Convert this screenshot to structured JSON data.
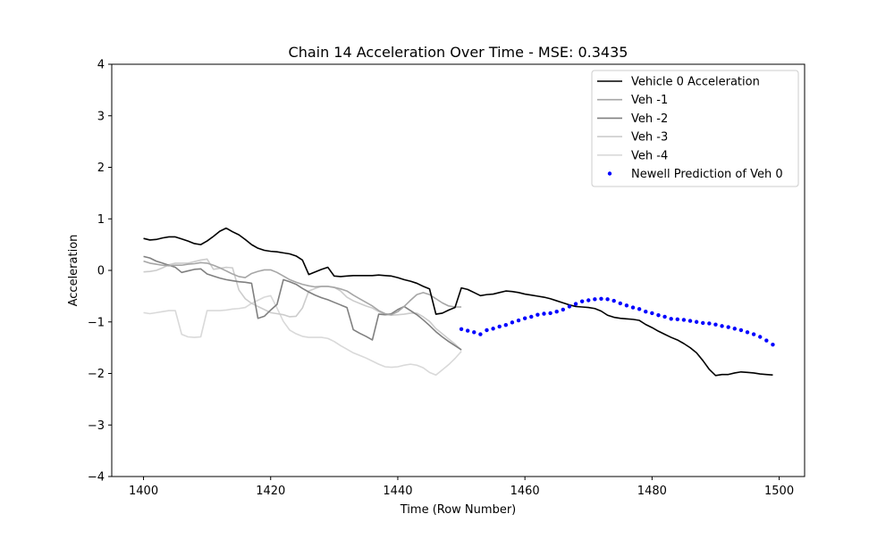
{
  "chart_data": {
    "type": "line",
    "title": "Chain 14 Acceleration Over Time - MSE: 0.3435",
    "xlabel": "Time (Row Number)",
    "ylabel": "Acceleration",
    "xlim": [
      1395,
      1504
    ],
    "ylim": [
      -4,
      4
    ],
    "x_ticks": [
      1400,
      1420,
      1440,
      1460,
      1480,
      1500
    ],
    "y_ticks": [
      -4,
      -3,
      -2,
      -1,
      0,
      1,
      2,
      3,
      4
    ],
    "x_tick_labels": [
      "1400",
      "1420",
      "1440",
      "1460",
      "1480",
      "1500"
    ],
    "y_tick_labels": [
      "−4",
      "−3",
      "−2",
      "−1",
      "0",
      "1",
      "2",
      "3",
      "4"
    ],
    "grid": false,
    "legend_position": "top-right",
    "series": [
      {
        "name": "Vehicle 0 Acceleration",
        "style": "solid",
        "color": "#000000",
        "x": [
          1400,
          1401,
          1402,
          1403,
          1404,
          1405,
          1406,
          1407,
          1408,
          1409,
          1410,
          1411,
          1412,
          1413,
          1414,
          1415,
          1416,
          1417,
          1418,
          1419,
          1420,
          1421,
          1422,
          1423,
          1424,
          1425,
          1426,
          1427,
          1428,
          1429,
          1430,
          1431,
          1432,
          1433,
          1434,
          1435,
          1436,
          1437,
          1438,
          1439,
          1440,
          1441,
          1442,
          1443,
          1444,
          1445,
          1446,
          1447,
          1448,
          1449,
          1450,
          1451,
          1452,
          1453,
          1454,
          1455,
          1456,
          1457,
          1458,
          1459,
          1460,
          1461,
          1462,
          1463,
          1464,
          1465,
          1466,
          1467,
          1468,
          1469,
          1470,
          1471,
          1472,
          1473,
          1474,
          1475,
          1476,
          1477,
          1478,
          1479,
          1480,
          1481,
          1482,
          1483,
          1484,
          1485,
          1486,
          1487,
          1488,
          1489,
          1490,
          1491,
          1492,
          1493,
          1494,
          1495,
          1496,
          1497,
          1498,
          1499
        ],
        "y": [
          0.62,
          0.59,
          0.6,
          0.63,
          0.65,
          0.65,
          0.61,
          0.57,
          0.52,
          0.5,
          0.57,
          0.66,
          0.76,
          0.82,
          0.75,
          0.69,
          0.6,
          0.5,
          0.43,
          0.39,
          0.37,
          0.36,
          0.34,
          0.32,
          0.28,
          0.2,
          -0.08,
          -0.03,
          0.02,
          0.06,
          -0.11,
          -0.12,
          -0.11,
          -0.1,
          -0.1,
          -0.1,
          -0.1,
          -0.09,
          -0.1,
          -0.11,
          -0.14,
          -0.18,
          -0.21,
          -0.25,
          -0.31,
          -0.36,
          -0.85,
          -0.83,
          -0.77,
          -0.72,
          -0.34,
          -0.37,
          -0.43,
          -0.49,
          -0.47,
          -0.46,
          -0.43,
          -0.4,
          -0.41,
          -0.43,
          -0.46,
          -0.48,
          -0.5,
          -0.52,
          -0.55,
          -0.59,
          -0.63,
          -0.67,
          -0.7,
          -0.71,
          -0.72,
          -0.74,
          -0.79,
          -0.87,
          -0.91,
          -0.93,
          -0.94,
          -0.95,
          -0.97,
          -1.05,
          -1.11,
          -1.18,
          -1.24,
          -1.3,
          -1.35,
          -1.42,
          -1.5,
          -1.6,
          -1.75,
          -1.92,
          -2.04,
          -2.02,
          -2.02,
          -1.99,
          -1.97,
          -1.98,
          -1.99,
          -2.01,
          -2.02,
          -2.03
        ]
      },
      {
        "name": "Veh -1",
        "style": "solid",
        "color": "#a6a6a6",
        "x": [
          1400,
          1401,
          1402,
          1403,
          1404,
          1405,
          1406,
          1407,
          1408,
          1409,
          1410,
          1411,
          1412,
          1413,
          1414,
          1415,
          1416,
          1417,
          1418,
          1419,
          1420,
          1421,
          1422,
          1423,
          1424,
          1425,
          1426,
          1427,
          1428,
          1429,
          1430,
          1431,
          1432,
          1433,
          1434,
          1435,
          1436,
          1437,
          1438,
          1439,
          1440,
          1441,
          1442,
          1443,
          1444,
          1445,
          1446,
          1447,
          1448,
          1449,
          1450
        ],
        "y": [
          0.18,
          0.14,
          0.12,
          0.1,
          0.09,
          0.1,
          0.1,
          0.12,
          0.13,
          0.15,
          0.14,
          0.1,
          0.05,
          -0.01,
          -0.07,
          -0.12,
          -0.14,
          -0.06,
          -0.02,
          0.01,
          0.01,
          -0.04,
          -0.11,
          -0.18,
          -0.23,
          -0.27,
          -0.3,
          -0.32,
          -0.31,
          -0.31,
          -0.33,
          -0.36,
          -0.4,
          -0.48,
          -0.55,
          -0.62,
          -0.69,
          -0.78,
          -0.84,
          -0.86,
          -0.8,
          -0.7,
          -0.58,
          -0.47,
          -0.43,
          -0.47,
          -0.55,
          -0.63,
          -0.69,
          -0.71,
          -0.71
        ]
      },
      {
        "name": "Veh -2",
        "style": "solid",
        "color": "#808080",
        "x": [
          1400,
          1401,
          1402,
          1403,
          1404,
          1405,
          1406,
          1407,
          1408,
          1409,
          1410,
          1411,
          1412,
          1413,
          1414,
          1415,
          1416,
          1417,
          1418,
          1419,
          1420,
          1421,
          1422,
          1423,
          1424,
          1425,
          1426,
          1427,
          1428,
          1429,
          1430,
          1431,
          1432,
          1433,
          1434,
          1435,
          1436,
          1437,
          1438,
          1439,
          1440,
          1441,
          1442,
          1443,
          1444,
          1445,
          1446,
          1447,
          1448,
          1449,
          1450
        ],
        "y": [
          0.27,
          0.24,
          0.18,
          0.14,
          0.1,
          0.06,
          -0.04,
          -0.01,
          0.02,
          0.03,
          -0.07,
          -0.11,
          -0.15,
          -0.18,
          -0.2,
          -0.22,
          -0.23,
          -0.25,
          -0.93,
          -0.89,
          -0.77,
          -0.66,
          -0.18,
          -0.22,
          -0.27,
          -0.35,
          -0.42,
          -0.48,
          -0.53,
          -0.57,
          -0.62,
          -0.67,
          -0.72,
          -1.15,
          -1.22,
          -1.28,
          -1.35,
          -0.85,
          -0.86,
          -0.84,
          -0.76,
          -0.7,
          -0.78,
          -0.86,
          -0.96,
          -1.07,
          -1.19,
          -1.29,
          -1.38,
          -1.46,
          -1.54
        ]
      },
      {
        "name": "Veh -3",
        "style": "solid",
        "color": "#cccccc",
        "x": [
          1400,
          1401,
          1402,
          1403,
          1404,
          1405,
          1406,
          1407,
          1408,
          1409,
          1410,
          1411,
          1412,
          1413,
          1414,
          1415,
          1416,
          1417,
          1418,
          1419,
          1420,
          1421,
          1422,
          1423,
          1424,
          1425,
          1426,
          1427,
          1428,
          1429,
          1430,
          1431,
          1432,
          1433,
          1434,
          1435,
          1436,
          1437,
          1438,
          1439,
          1440,
          1441,
          1442,
          1443,
          1444,
          1445,
          1446,
          1447,
          1448,
          1449,
          1450
        ],
        "y": [
          -0.03,
          -0.02,
          0.0,
          0.05,
          0.11,
          0.14,
          0.14,
          0.14,
          0.17,
          0.2,
          0.22,
          0.02,
          0.04,
          0.06,
          0.05,
          -0.38,
          -0.55,
          -0.64,
          -0.7,
          -0.76,
          -0.82,
          -0.84,
          -0.86,
          -0.9,
          -0.89,
          -0.73,
          -0.4,
          -0.35,
          -0.31,
          -0.31,
          -0.33,
          -0.4,
          -0.52,
          -0.59,
          -0.64,
          -0.69,
          -0.73,
          -0.8,
          -0.86,
          -0.87,
          -0.86,
          -0.85,
          -0.83,
          -0.83,
          -0.9,
          -0.99,
          -1.13,
          -1.23,
          -1.33,
          -1.43,
          -1.55
        ]
      },
      {
        "name": "Veh -4",
        "style": "solid",
        "color": "#d9d9d9",
        "x": [
          1400,
          1401,
          1402,
          1403,
          1404,
          1405,
          1406,
          1407,
          1408,
          1409,
          1410,
          1411,
          1412,
          1413,
          1414,
          1415,
          1416,
          1417,
          1418,
          1419,
          1420,
          1421,
          1422,
          1423,
          1424,
          1425,
          1426,
          1427,
          1428,
          1429,
          1430,
          1431,
          1432,
          1433,
          1434,
          1435,
          1436,
          1437,
          1438,
          1439,
          1440,
          1441,
          1442,
          1443,
          1444,
          1445,
          1446,
          1447,
          1448,
          1449,
          1450
        ],
        "y": [
          -0.82,
          -0.84,
          -0.82,
          -0.8,
          -0.78,
          -0.78,
          -1.24,
          -1.29,
          -1.3,
          -1.29,
          -0.78,
          -0.78,
          -0.78,
          -0.77,
          -0.75,
          -0.74,
          -0.72,
          -0.64,
          -0.58,
          -0.52,
          -0.49,
          -0.73,
          -0.99,
          -1.16,
          -1.23,
          -1.28,
          -1.3,
          -1.3,
          -1.3,
          -1.32,
          -1.38,
          -1.46,
          -1.53,
          -1.6,
          -1.65,
          -1.7,
          -1.76,
          -1.82,
          -1.87,
          -1.88,
          -1.87,
          -1.84,
          -1.82,
          -1.84,
          -1.89,
          -1.98,
          -2.03,
          -1.93,
          -1.83,
          -1.71,
          -1.57
        ]
      },
      {
        "name": "Newell Prediction of Veh 0",
        "style": "dotted",
        "color": "#0000ff",
        "x": [
          1450,
          1451,
          1452,
          1453,
          1454,
          1455,
          1456,
          1457,
          1458,
          1459,
          1460,
          1461,
          1462,
          1463,
          1464,
          1465,
          1466,
          1467,
          1468,
          1469,
          1470,
          1471,
          1472,
          1473,
          1474,
          1475,
          1476,
          1477,
          1478,
          1479,
          1480,
          1481,
          1482,
          1483,
          1484,
          1485,
          1486,
          1487,
          1488,
          1489,
          1490,
          1491,
          1492,
          1493,
          1494,
          1495,
          1496,
          1497,
          1498,
          1499
        ],
        "y": [
          -1.14,
          -1.17,
          -1.2,
          -1.24,
          -1.16,
          -1.13,
          -1.09,
          -1.06,
          -1.01,
          -0.97,
          -0.93,
          -0.9,
          -0.86,
          -0.84,
          -0.83,
          -0.8,
          -0.76,
          -0.7,
          -0.65,
          -0.6,
          -0.58,
          -0.56,
          -0.55,
          -0.56,
          -0.59,
          -0.64,
          -0.68,
          -0.72,
          -0.75,
          -0.8,
          -0.83,
          -0.87,
          -0.9,
          -0.94,
          -0.95,
          -0.96,
          -0.98,
          -1.0,
          -1.02,
          -1.03,
          -1.05,
          -1.08,
          -1.1,
          -1.13,
          -1.16,
          -1.2,
          -1.24,
          -1.29,
          -1.36,
          -1.44
        ]
      }
    ]
  }
}
